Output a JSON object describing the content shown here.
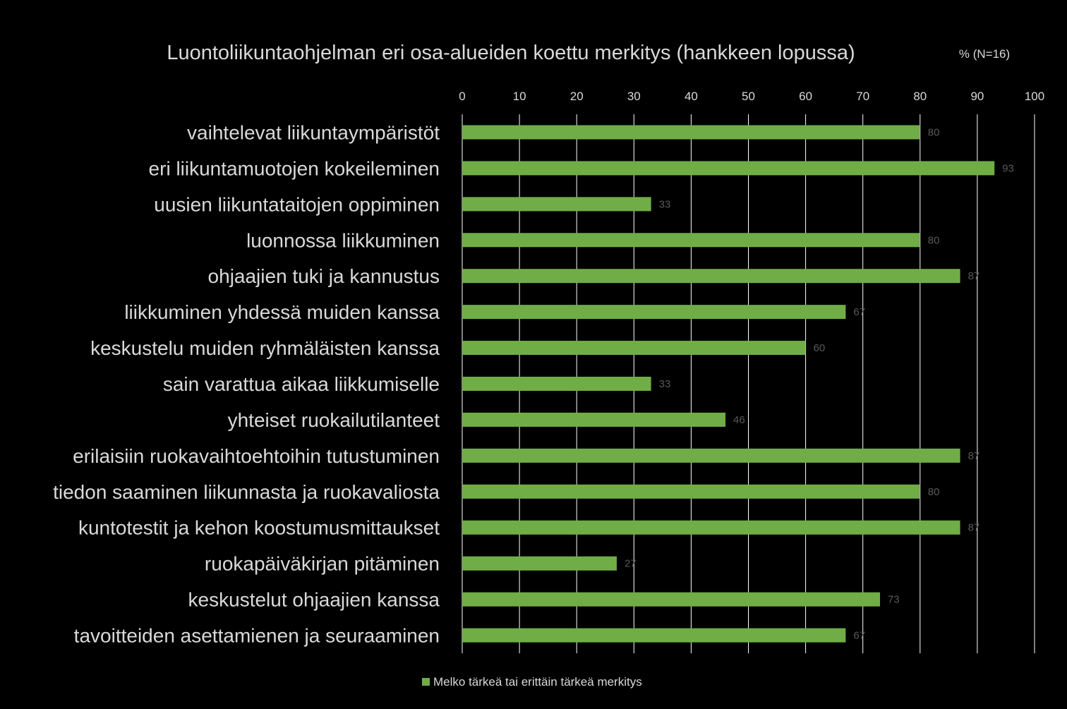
{
  "chart_data": {
    "type": "bar",
    "orientation": "horizontal",
    "title": "Luontoliikuntaohjelman eri osa-alueiden koettu merkitys (hankkeen lopussa)",
    "unit_label": "% (N=16)",
    "categories": [
      "vaihtelevat liikuntaympäristöt",
      "eri liikuntamuotojen kokeileminen",
      "uusien liikuntataitojen oppiminen",
      "luonnossa liikkuminen",
      "ohjaajien tuki ja kannustus",
      "liikkuminen yhdessä muiden kanssa",
      "keskustelu muiden ryhmäläisten kanssa",
      "sain varattua aikaa liikkumiselle",
      "yhteiset ruokailutilanteet",
      "erilaisiin ruokavaihtoehtoihin tutustuminen",
      "tiedon saaminen liikunnasta ja ruokavaliosta",
      "kuntotestit ja kehon koostumusmittaukset",
      "ruokapäiväkirjan pitäminen",
      "keskustelut ohjaajien kanssa",
      "tavoitteiden asettamienen ja seuraaminen"
    ],
    "series": [
      {
        "name": "Melko tärkeä tai erittäin tärkeä merkitys",
        "color": "#70ad47",
        "values": [
          80,
          93,
          33,
          80,
          87,
          67,
          60,
          33,
          46,
          87,
          80,
          87,
          27,
          73,
          67
        ]
      }
    ],
    "xlim": [
      0,
      100
    ],
    "xticks": [
      "0",
      "10",
      "20",
      "30",
      "40",
      "50",
      "60",
      "70",
      "80",
      "90",
      "100"
    ],
    "x_axis_position": "top",
    "grid": true,
    "legend": "bottom-center",
    "data_labels": true
  }
}
